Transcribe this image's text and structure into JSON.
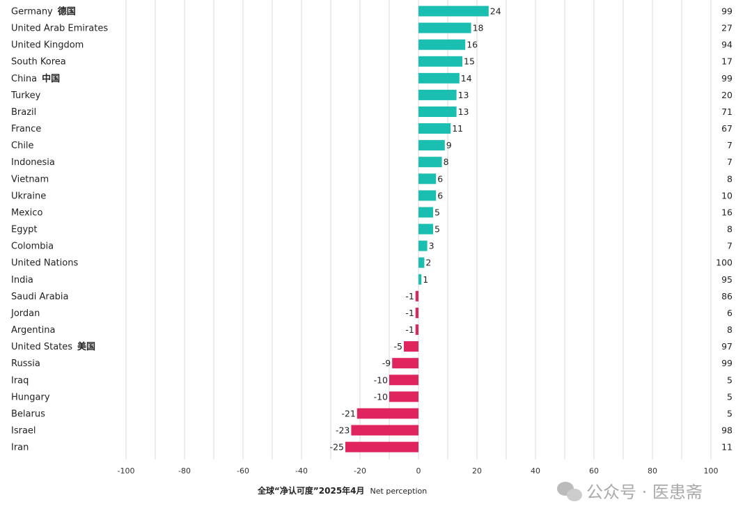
{
  "chart_data": {
    "type": "bar",
    "orientation": "horizontal",
    "categories": [
      "Germany",
      "United Arab Emirates",
      "United Kingdom",
      "South Korea",
      "China",
      "Turkey",
      "Brazil",
      "France",
      "Chile",
      "Indonesia",
      "Vietnam",
      "Ukraine",
      "Mexico",
      "Egypt",
      "Colombia",
      "United Nations",
      "India",
      "Saudi Arabia",
      "Jordan",
      "Argentina",
      "United States",
      "Russia",
      "Iraq",
      "Hungary",
      "Belarus",
      "Israel",
      "Iran"
    ],
    "category_annotations": {
      "Germany": "德国",
      "China": "中国",
      "United States": "美国"
    },
    "annotation_colors": {
      "Germany": "#e8b04a",
      "China": "#b22222",
      "United States": "#1a237e"
    },
    "values": [
      24,
      18,
      16,
      15,
      14,
      13,
      13,
      11,
      9,
      8,
      6,
      6,
      5,
      5,
      3,
      2,
      1,
      -1,
      -1,
      -1,
      -5,
      -9,
      -10,
      -10,
      -21,
      -23,
      -25
    ],
    "right_values": [
      99,
      27,
      94,
      17,
      99,
      20,
      71,
      67,
      7,
      7,
      8,
      10,
      16,
      8,
      7,
      100,
      95,
      86,
      6,
      8,
      97,
      99,
      5,
      5,
      5,
      98,
      11
    ],
    "xlim": [
      -100,
      100
    ],
    "xticks": [
      -100,
      -80,
      -60,
      -40,
      -20,
      0,
      20,
      40,
      60,
      80,
      100
    ],
    "xlabel": "全球“净认可度”2025年4月",
    "xlabel_sub": "Net perception",
    "grid": true,
    "colors": {
      "positive": "#1bbfb1",
      "negative": "#e0245e",
      "grid": "#e6e6e6"
    }
  },
  "watermark": "公众号 · 医患斋"
}
